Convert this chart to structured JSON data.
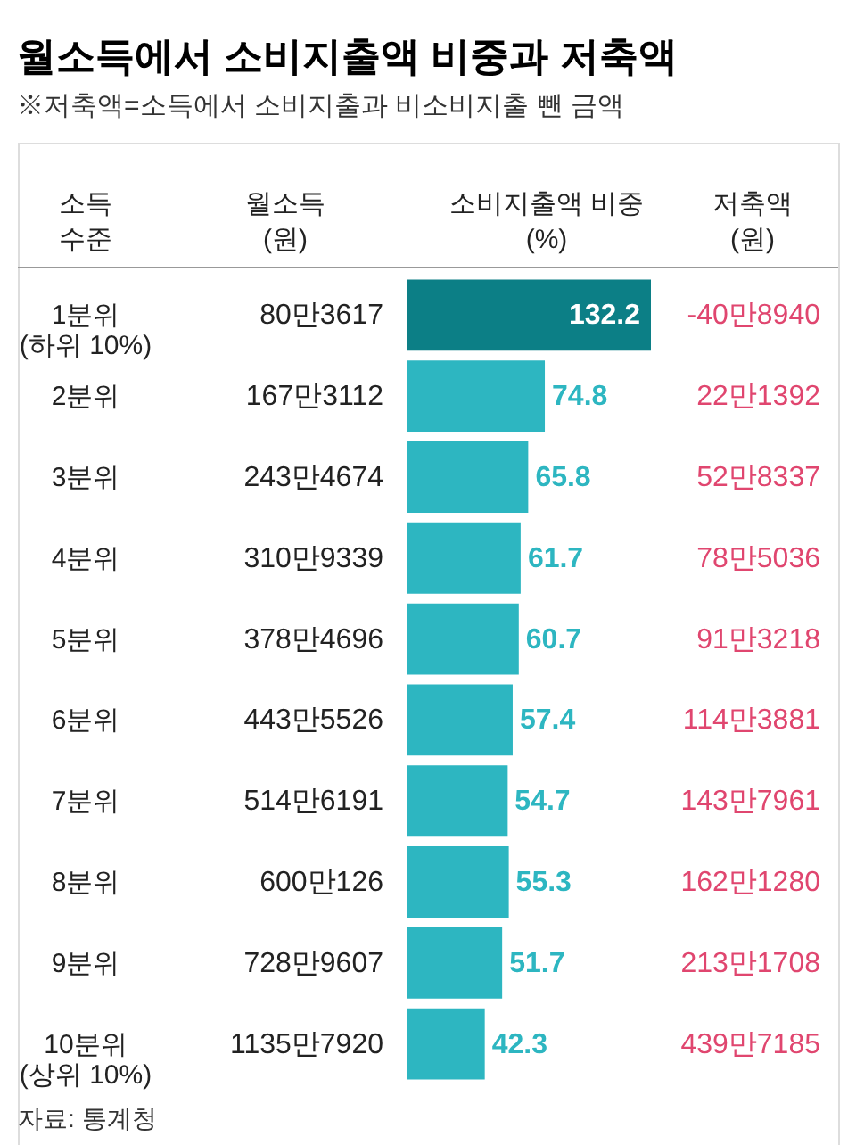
{
  "chart_data": {
    "type": "bar",
    "orientation": "horizontal",
    "title": "월소득에서 소비지출액 비중과 저축액",
    "subtitle": "※저축액=소득에서 소비지출과 비소비지출 뺀 금액",
    "xlabel": "소비지출액 비중\n(%)",
    "categories": [
      "1분위\n(하위 10%)",
      "2분위",
      "3분위",
      "4분위",
      "5분위",
      "6분위",
      "7분위",
      "8분위",
      "9분위",
      "10분위\n(상위 10%)"
    ],
    "values": [
      132.2,
      74.8,
      65.8,
      61.7,
      60.7,
      57.4,
      54.7,
      55.3,
      51.7,
      42.3
    ],
    "colors": [
      "#0c7f86",
      "#2db6c1",
      "#2db6c1",
      "#2db6c1",
      "#2db6c1",
      "#2db6c1",
      "#2db6c1",
      "#2db6c1",
      "#2db6c1",
      "#2db6c1"
    ],
    "data_labels": true,
    "annotations": [
      "소득\n수준",
      "월소득\n(원)",
      "저축액\n(원)",
      "자료: 통계청",
      "80만3617",
      "167만3112",
      "243만4674",
      "310만9339",
      "378만4696",
      "443만5526",
      "514만6191",
      "600만126",
      "728만9607",
      "1135만7920",
      "-40만8940",
      "22만1392",
      "52만8337",
      "78만5036",
      "91만3218",
      "114만3881",
      "143만7961",
      "162만1280",
      "213만1708",
      "439만7185"
    ]
  }
}
